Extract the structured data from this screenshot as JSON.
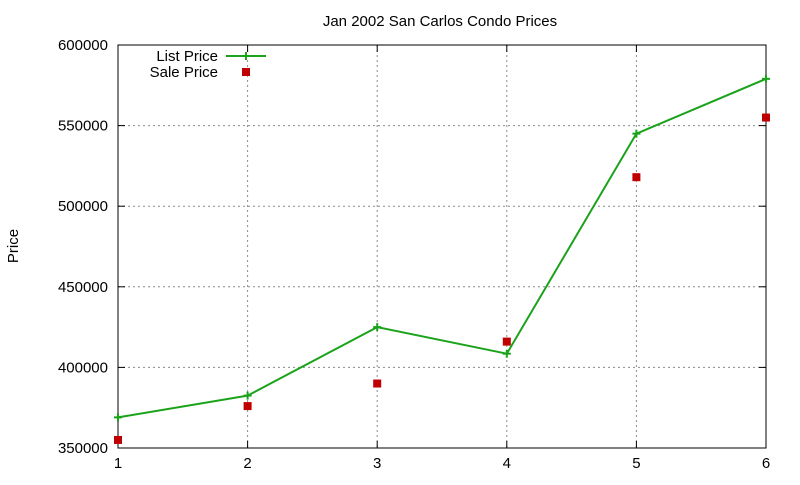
{
  "chart_data": {
    "type": "line",
    "title": "Jan 2002 San Carlos Condo Prices",
    "xlabel": "",
    "ylabel": "Price",
    "xlim": [
      1,
      6
    ],
    "ylim": [
      350000,
      600000
    ],
    "x_ticks": [
      "1",
      "2",
      "3",
      "4",
      "5",
      "6"
    ],
    "y_ticks": [
      "350000",
      "400000",
      "450000",
      "500000",
      "550000",
      "600000"
    ],
    "grid": true,
    "legend_position": "top-left",
    "x": [
      1,
      2,
      3,
      4,
      5,
      6
    ],
    "series": [
      {
        "name": "List Price",
        "style": "lines+points",
        "color": "#1aa31a",
        "values": [
          369000,
          382500,
          425000,
          408500,
          545000,
          579000
        ]
      },
      {
        "name": "Sale Price",
        "style": "points",
        "color": "#c00000",
        "values": [
          355000,
          376000,
          390000,
          416000,
          518000,
          555000
        ]
      }
    ]
  }
}
